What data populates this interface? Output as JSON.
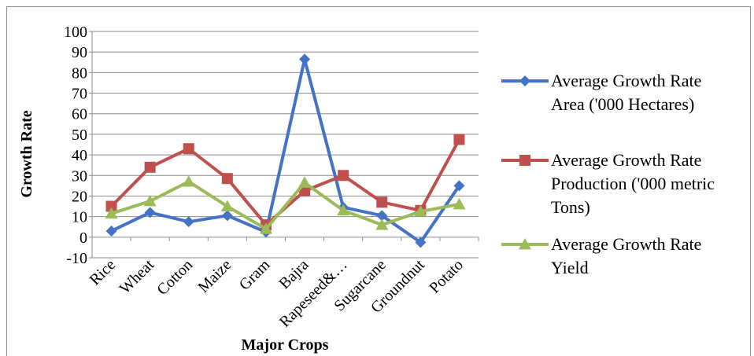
{
  "chart_data": {
    "type": "line",
    "title": "",
    "xlabel": "Major Crops",
    "ylabel": "Growth Rate",
    "ylim": [
      -10,
      100
    ],
    "yticks": [
      100,
      90,
      80,
      70,
      60,
      50,
      40,
      30,
      20,
      10,
      0,
      -10
    ],
    "grid": "horizontal",
    "legend_position": "right",
    "categories": [
      "Rice",
      "Wheat",
      "Cotton",
      "Maize",
      "Gram",
      "Bajra",
      "Rapeseed&…",
      "Sugarcane",
      "Groundnut",
      "Potato"
    ],
    "series": [
      {
        "name": "Average Growth Rate Area ('000 Hectares)",
        "legend_lines": [
          "Average Growth Rate",
          "Area ('000 Hectares)"
        ],
        "color": "#4472C4",
        "marker": "diamond",
        "values": [
          3,
          12,
          7.5,
          10.5,
          2.5,
          86.5,
          14.5,
          10.5,
          -2.5,
          25
        ]
      },
      {
        "name": "Average Growth Rate Production ('000 metric Tons)",
        "legend_lines": [
          "Average Growth Rate",
          "Production ('000 metric",
          "Tons)"
        ],
        "color": "#C0504D",
        "marker": "square",
        "values": [
          15,
          34,
          43,
          28.5,
          6,
          22.5,
          30,
          17,
          13,
          47.5
        ]
      },
      {
        "name": "Average Growth Rate Yield",
        "legend_lines": [
          "Average Growth Rate",
          "Yield"
        ],
        "color": "#9BBB59",
        "marker": "triangle",
        "values": [
          11.5,
          17.5,
          27,
          15,
          4,
          26.5,
          13,
          6,
          12.5,
          16
        ]
      }
    ]
  }
}
